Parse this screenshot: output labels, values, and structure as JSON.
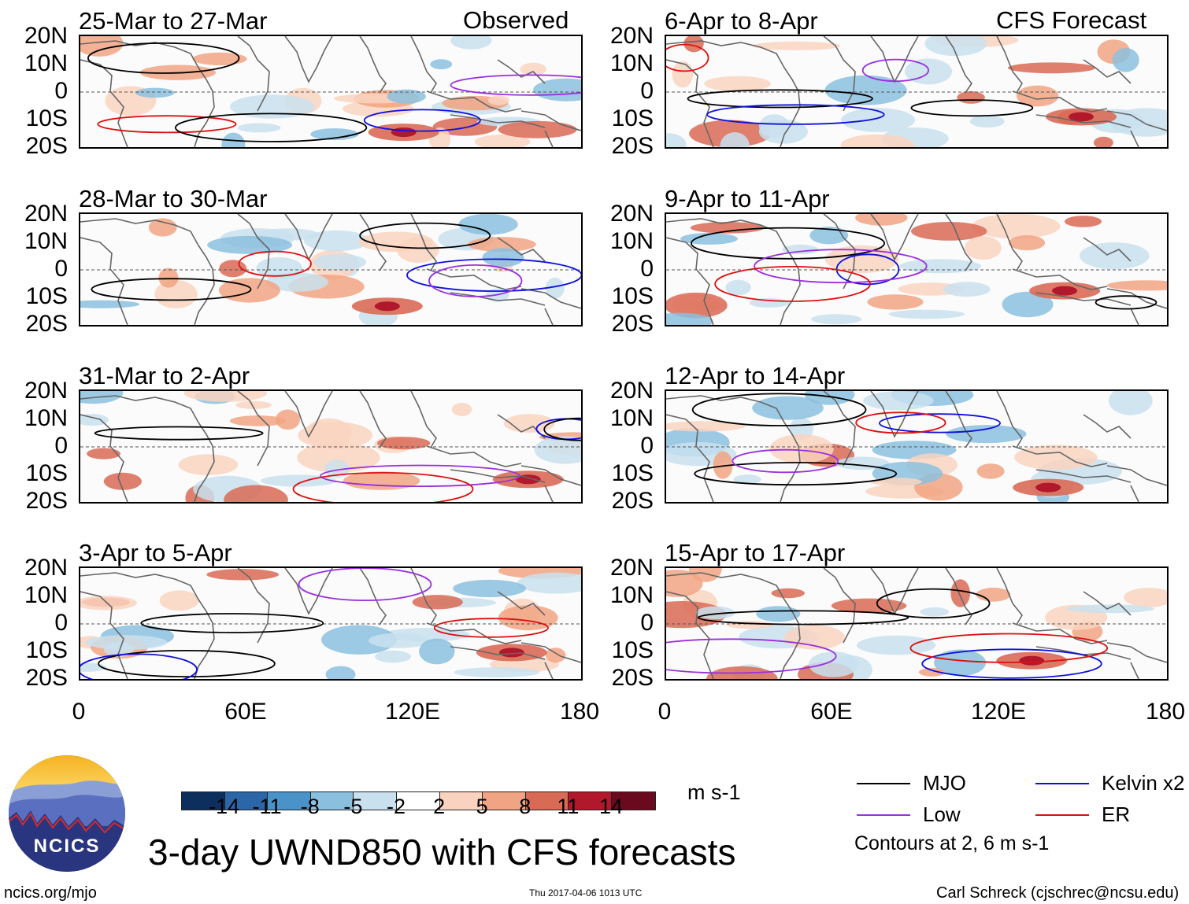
{
  "observed_tag": "Observed",
  "forecast_tag": "CFS Forecast",
  "lat_labels": [
    "20N",
    "10N",
    "0",
    "10S",
    "20S"
  ],
  "lon_labels": [
    "0",
    "60E",
    "120E",
    "180"
  ],
  "panels": [
    {
      "title": "25-Mar to 27-Mar",
      "column": "observed"
    },
    {
      "title": "28-Mar to 30-Mar",
      "column": "observed"
    },
    {
      "title": "31-Mar to 2-Apr",
      "column": "observed"
    },
    {
      "title": "3-Apr to 5-Apr",
      "column": "observed"
    },
    {
      "title": "6-Apr to 8-Apr",
      "column": "forecast"
    },
    {
      "title": "9-Apr to 11-Apr",
      "column": "forecast"
    },
    {
      "title": "12-Apr to 14-Apr",
      "column": "forecast"
    },
    {
      "title": "15-Apr to 17-Apr",
      "column": "forecast"
    }
  ],
  "colorbar": {
    "ticks": [
      "-14",
      "-11",
      "-8",
      "-5",
      "-2",
      "2",
      "5",
      "8",
      "11",
      "14"
    ],
    "colors": [
      "#0d2f5e",
      "#2b66a8",
      "#4a93c8",
      "#8bbfde",
      "#c9e0ef",
      "#ffffff",
      "#f9d3c0",
      "#f1a483",
      "#d96a55",
      "#b2182b",
      "#6b0a1e"
    ],
    "units": "m s-1"
  },
  "legend": [
    {
      "label": "MJO",
      "color": "#000000"
    },
    {
      "label": "Kelvin x2",
      "color": "#1010dd"
    },
    {
      "label": "Low",
      "color": "#9a30dd"
    },
    {
      "label": "ER",
      "color": "#dd1010"
    }
  ],
  "contour_note": "Contours at 2, 6 m s-1",
  "main_title": "3-day UWND850 with CFS forecasts",
  "logo_text": "NCICS",
  "footer_left": "ncics.org/mjo",
  "footer_timestamp": "Thu 2017-04-06 1013 UTC",
  "footer_right": "Carl Schreck (cjschrec@ncsu.edu)"
}
